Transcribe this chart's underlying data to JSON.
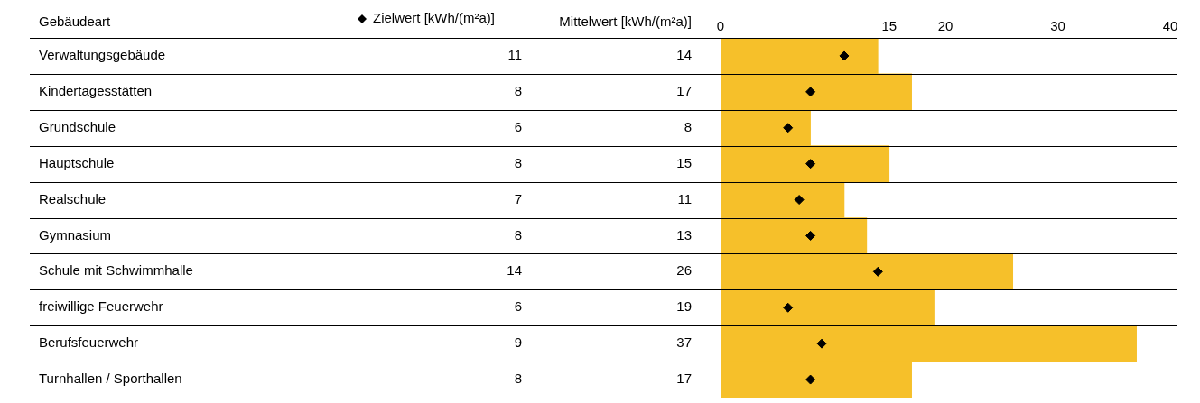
{
  "chart_data": {
    "type": "bar",
    "orientation": "horizontal",
    "ylabel": "Gebäudeart",
    "categories": [
      "Verwaltungsgebäude",
      "Kindertagesstätten",
      "Grundschule",
      "Hauptschule",
      "Realschule",
      "Gymnasium",
      "Schule mit Schwimmhalle",
      "freiwillige Feuerwehr",
      "Berufsfeuerwehr",
      "Turnhallen / Sporthallen"
    ],
    "series": [
      {
        "name": "Zielwert [kWh/(m²a)]",
        "type": "scatter",
        "marker": "diamond",
        "color": "#000000",
        "values": [
          11,
          8,
          6,
          8,
          7,
          8,
          14,
          6,
          9,
          8
        ]
      },
      {
        "name": "Mittelwert [kWh/(m²a)]",
        "color": "#f6c02a",
        "values": [
          14,
          17,
          8,
          15,
          11,
          13,
          26,
          19,
          37,
          17
        ]
      }
    ],
    "x2lim": [
      0,
      40
    ],
    "x2ticks": [
      0,
      15,
      20,
      30,
      40
    ],
    "data_labels": true,
    "legend": "top"
  }
}
